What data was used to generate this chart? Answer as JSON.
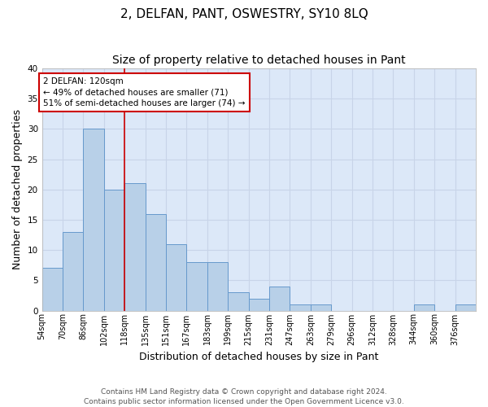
{
  "title": "2, DELFAN, PANT, OSWESTRY, SY10 8LQ",
  "subtitle": "Size of property relative to detached houses in Pant",
  "xlabel": "Distribution of detached houses by size in Pant",
  "ylabel": "Number of detached properties",
  "categories": [
    "54sqm",
    "70sqm",
    "86sqm",
    "102sqm",
    "118sqm",
    "135sqm",
    "151sqm",
    "167sqm",
    "183sqm",
    "199sqm",
    "215sqm",
    "231sqm",
    "247sqm",
    "263sqm",
    "279sqm",
    "296sqm",
    "312sqm",
    "328sqm",
    "344sqm",
    "360sqm",
    "376sqm"
  ],
  "values": [
    7,
    13,
    30,
    20,
    21,
    16,
    11,
    8,
    8,
    3,
    2,
    4,
    1,
    1,
    0,
    0,
    0,
    0,
    1,
    0,
    1
  ],
  "bar_color": "#b8d0e8",
  "bar_edge_color": "#6699cc",
  "annotation_line_color": "#cc0000",
  "annotation_box_color": "#ffffff",
  "annotation_box_edge_color": "#cc0000",
  "annotation_text_line1": "2 DELFAN: 120sqm",
  "annotation_text_line2": "← 49% of detached houses are smaller (71)",
  "annotation_text_line3": "51% of semi-detached houses are larger (74) →",
  "ylim": [
    0,
    40
  ],
  "yticks": [
    0,
    5,
    10,
    15,
    20,
    25,
    30,
    35,
    40
  ],
  "grid_color": "#c8d4e8",
  "background_color": "#dce8f8",
  "footer_line1": "Contains HM Land Registry data © Crown copyright and database right 2024.",
  "footer_line2": "Contains public sector information licensed under the Open Government Licence v3.0.",
  "title_fontsize": 11,
  "subtitle_fontsize": 10,
  "ylabel_fontsize": 9,
  "xlabel_fontsize": 9,
  "tick_fontsize": 7,
  "annotation_fontsize": 7.5,
  "footer_fontsize": 6.5
}
